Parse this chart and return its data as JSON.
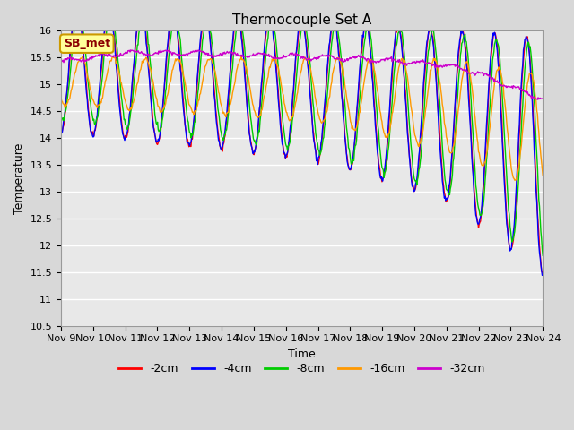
{
  "title": "Thermocouple Set A",
  "xlabel": "Time",
  "ylabel": "Temperature",
  "ylim": [
    10.5,
    16.0
  ],
  "yticks": [
    10.5,
    11.0,
    11.5,
    12.0,
    12.5,
    13.0,
    13.5,
    14.0,
    14.5,
    15.0,
    15.5,
    16.0
  ],
  "xtick_labels": [
    "Nov 9",
    "Nov 10",
    "Nov 11",
    "Nov 12",
    "Nov 13",
    "Nov 14",
    "Nov 15",
    "Nov 16",
    "Nov 17",
    "Nov 18",
    "Nov 19",
    "Nov 20",
    "Nov 21",
    "Nov 22",
    "Nov 23",
    "Nov 24"
  ],
  "series_colors": [
    "#ff0000",
    "#0000ff",
    "#00cc00",
    "#ff9900",
    "#cc00cc"
  ],
  "series_labels": [
    "-2cm",
    "-4cm",
    "-8cm",
    "-16cm",
    "-32cm"
  ],
  "line_width": 1.0,
  "background_color": "#d8d8d8",
  "plot_bg_color": "#e8e8e8",
  "annotation_text": "SB_met",
  "annotation_bg": "#ffff99",
  "annotation_border": "#cc9900",
  "title_fontsize": 11,
  "label_fontsize": 9,
  "tick_fontsize": 8
}
